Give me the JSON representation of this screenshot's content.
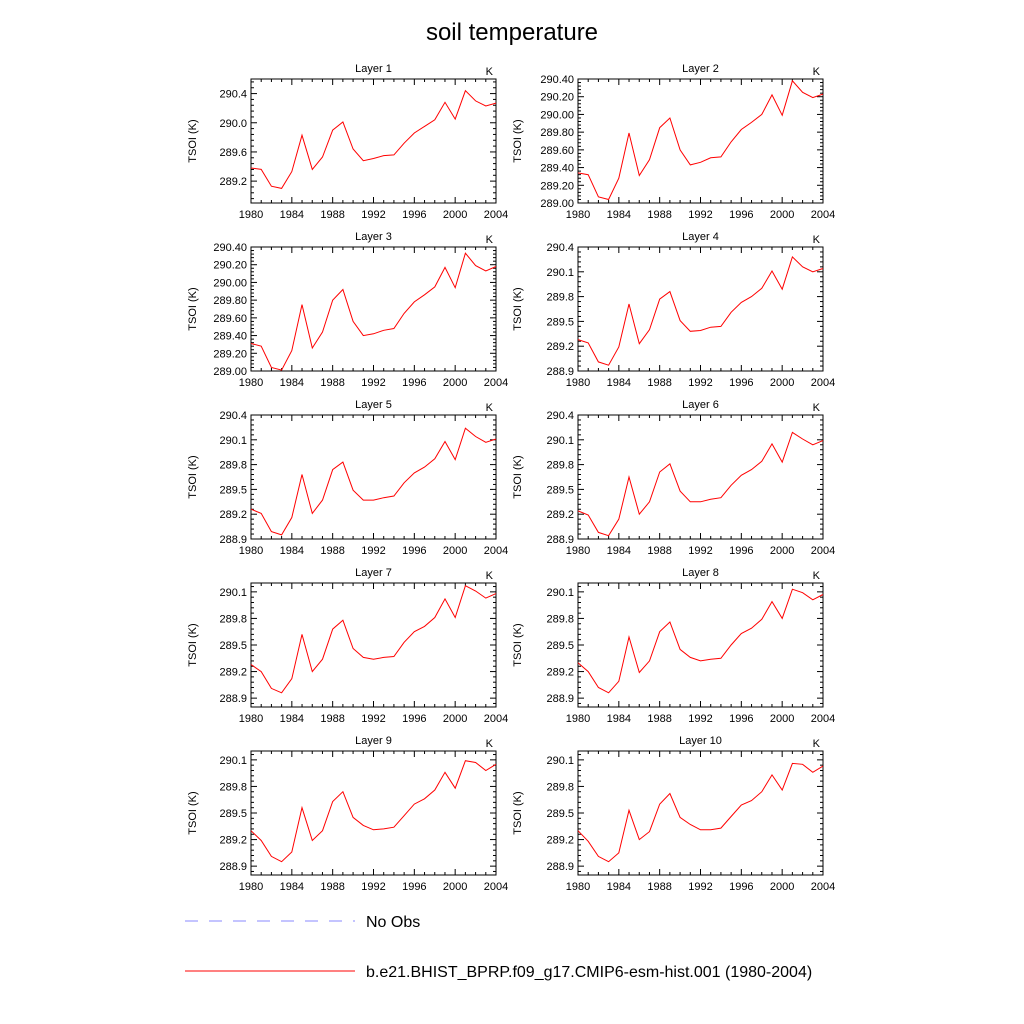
{
  "title": "soil temperature",
  "units_label": "K",
  "ylabel": "TSOI  (K)",
  "x_ticks": [
    "1980",
    "1984",
    "1988",
    "1992",
    "1996",
    "2000",
    "2004"
  ],
  "legend": {
    "obs_label": "No Obs",
    "model_label": "b.e21.BHIST_BPRP.f09_g17.CMIP6-esm-hist.001 (1980-2004)",
    "model_color": "#ff0000",
    "obs_color": "#8888ff"
  },
  "chart_data": [
    {
      "type": "line",
      "title": "Layer 1",
      "xlabel": "",
      "ylabel": "TSOI  (K)",
      "xlim": [
        1980,
        2004
      ],
      "ylim": [
        288.9,
        290.6
      ],
      "yticks": [
        289.2,
        289.6,
        290.0,
        290.4
      ],
      "ytick_labels": [
        "289.2",
        "289.6",
        "290.0",
        "290.4"
      ],
      "series": [
        {
          "name": "b.e21.BHIST_BPRP.f09_g17.CMIP6-esm-hist.001 (1980-2004)",
          "x": [
            1980,
            1981,
            1982,
            1983,
            1984,
            1985,
            1986,
            1987,
            1988,
            1989,
            1990,
            1991,
            1992,
            1993,
            1994,
            1995,
            1996,
            1997,
            1998,
            1999,
            2000,
            2001,
            2002,
            2003,
            2004
          ],
          "values": [
            289.38,
            289.36,
            289.13,
            289.1,
            289.33,
            289.83,
            289.36,
            289.53,
            289.9,
            290.01,
            289.64,
            289.48,
            289.51,
            289.55,
            289.56,
            289.72,
            289.86,
            289.95,
            290.04,
            290.28,
            290.05,
            290.44,
            290.3,
            290.23,
            290.27
          ]
        }
      ]
    },
    {
      "type": "line",
      "title": "Layer 2",
      "xlabel": "",
      "ylabel": "TSOI  (K)",
      "xlim": [
        1980,
        2004
      ],
      "ylim": [
        289.0,
        290.4
      ],
      "yticks": [
        289.0,
        289.2,
        289.4,
        289.6,
        289.8,
        290.0,
        290.2,
        290.4
      ],
      "ytick_labels": [
        "289.00",
        "289.20",
        "289.40",
        "289.60",
        "289.80",
        "290.00",
        "290.20",
        "290.40"
      ],
      "series": [
        {
          "name": "b.e21.BHIST_BPRP.f09_g17.CMIP6-esm-hist.001 (1980-2004)",
          "x": [
            1980,
            1981,
            1982,
            1983,
            1984,
            1985,
            1986,
            1987,
            1988,
            1989,
            1990,
            1991,
            1992,
            1993,
            1994,
            1995,
            1996,
            1997,
            1998,
            1999,
            2000,
            2001,
            2002,
            2003,
            2004
          ],
          "values": [
            289.34,
            289.32,
            289.07,
            289.04,
            289.28,
            289.79,
            289.31,
            289.49,
            289.85,
            289.96,
            289.6,
            289.43,
            289.46,
            289.51,
            289.52,
            289.69,
            289.83,
            289.91,
            290.0,
            290.22,
            289.99,
            290.38,
            290.25,
            290.19,
            290.23
          ]
        }
      ]
    },
    {
      "type": "line",
      "title": "Layer 3",
      "xlabel": "",
      "ylabel": "TSOI  (K)",
      "xlim": [
        1980,
        2004
      ],
      "ylim": [
        289.0,
        290.4
      ],
      "yticks": [
        289.0,
        289.2,
        289.4,
        289.6,
        289.8,
        290.0,
        290.2,
        290.4
      ],
      "ytick_labels": [
        "289.00",
        "289.20",
        "289.40",
        "289.60",
        "289.80",
        "290.00",
        "290.20",
        "290.40"
      ],
      "series": [
        {
          "name": "b.e21.BHIST_BPRP.f09_g17.CMIP6-esm-hist.001 (1980-2004)",
          "x": [
            1980,
            1981,
            1982,
            1983,
            1984,
            1985,
            1986,
            1987,
            1988,
            1989,
            1990,
            1991,
            1992,
            1993,
            1994,
            1995,
            1996,
            1997,
            1998,
            1999,
            2000,
            2001,
            2002,
            2003,
            2004
          ],
          "values": [
            289.31,
            289.28,
            289.04,
            289.01,
            289.23,
            289.75,
            289.26,
            289.44,
            289.8,
            289.92,
            289.56,
            289.4,
            289.42,
            289.46,
            289.48,
            289.65,
            289.78,
            289.86,
            289.95,
            290.17,
            289.94,
            290.33,
            290.19,
            290.13,
            290.18
          ]
        }
      ]
    },
    {
      "type": "line",
      "title": "Layer 4",
      "xlabel": "",
      "ylabel": "TSOI  (K)",
      "xlim": [
        1980,
        2004
      ],
      "ylim": [
        288.9,
        290.4
      ],
      "yticks": [
        288.9,
        289.2,
        289.5,
        289.8,
        290.1,
        290.4
      ],
      "ytick_labels": [
        "288.9",
        "289.2",
        "289.5",
        "289.8",
        "290.1",
        "290.4"
      ],
      "series": [
        {
          "name": "b.e21.BHIST_BPRP.f09_g17.CMIP6-esm-hist.001 (1980-2004)",
          "x": [
            1980,
            1981,
            1982,
            1983,
            1984,
            1985,
            1986,
            1987,
            1988,
            1989,
            1990,
            1991,
            1992,
            1993,
            1994,
            1995,
            1996,
            1997,
            1998,
            1999,
            2000,
            2001,
            2002,
            2003,
            2004
          ],
          "values": [
            289.28,
            289.24,
            289.01,
            288.97,
            289.19,
            289.71,
            289.23,
            289.4,
            289.77,
            289.86,
            289.51,
            289.38,
            289.39,
            289.43,
            289.44,
            289.61,
            289.73,
            289.8,
            289.9,
            290.11,
            289.89,
            290.28,
            290.16,
            290.1,
            290.14
          ]
        }
      ]
    },
    {
      "type": "line",
      "title": "Layer 5",
      "xlabel": "",
      "ylabel": "TSOI  (K)",
      "xlim": [
        1980,
        2004
      ],
      "ylim": [
        288.9,
        290.4
      ],
      "yticks": [
        288.9,
        289.2,
        289.5,
        289.8,
        290.1,
        290.4
      ],
      "ytick_labels": [
        "288.9",
        "289.2",
        "289.5",
        "289.8",
        "290.1",
        "290.4"
      ],
      "series": [
        {
          "name": "b.e21.BHIST_BPRP.f09_g17.CMIP6-esm-hist.001 (1980-2004)",
          "x": [
            1980,
            1981,
            1982,
            1983,
            1984,
            1985,
            1986,
            1987,
            1988,
            1989,
            1990,
            1991,
            1992,
            1993,
            1994,
            1995,
            1996,
            1997,
            1998,
            1999,
            2000,
            2001,
            2002,
            2003,
            2004
          ],
          "values": [
            289.26,
            289.21,
            288.99,
            288.95,
            289.16,
            289.68,
            289.21,
            289.37,
            289.74,
            289.83,
            289.49,
            289.37,
            289.37,
            289.4,
            289.42,
            289.58,
            289.7,
            289.77,
            289.87,
            290.08,
            289.86,
            290.24,
            290.14,
            290.07,
            290.11
          ]
        }
      ]
    },
    {
      "type": "line",
      "title": "Layer 6",
      "xlabel": "",
      "ylabel": "TSOI  (K)",
      "xlim": [
        1980,
        2004
      ],
      "ylim": [
        288.9,
        290.4
      ],
      "yticks": [
        288.9,
        289.2,
        289.5,
        289.8,
        290.1,
        290.4
      ],
      "ytick_labels": [
        "288.9",
        "289.2",
        "289.5",
        "289.8",
        "290.1",
        "290.4"
      ],
      "series": [
        {
          "name": "b.e21.BHIST_BPRP.f09_g17.CMIP6-esm-hist.001 (1980-2004)",
          "x": [
            1980,
            1981,
            1982,
            1983,
            1984,
            1985,
            1986,
            1987,
            1988,
            1989,
            1990,
            1991,
            1992,
            1993,
            1994,
            1995,
            1996,
            1997,
            1998,
            1999,
            2000,
            2001,
            2002,
            2003,
            2004
          ],
          "values": [
            289.24,
            289.19,
            288.98,
            288.94,
            289.14,
            289.65,
            289.2,
            289.35,
            289.71,
            289.81,
            289.48,
            289.35,
            289.35,
            289.38,
            289.4,
            289.55,
            289.67,
            289.74,
            289.84,
            290.05,
            289.83,
            290.19,
            290.11,
            290.04,
            290.09
          ]
        }
      ]
    },
    {
      "type": "line",
      "title": "Layer 7",
      "xlabel": "",
      "ylabel": "TSOI  (K)",
      "xlim": [
        1980,
        2004
      ],
      "ylim": [
        288.8,
        290.2
      ],
      "yticks": [
        288.9,
        289.2,
        289.5,
        289.8,
        290.1
      ],
      "ytick_labels": [
        "288.9",
        "289.2",
        "289.5",
        "289.8",
        "290.1"
      ],
      "series": [
        {
          "name": "b.e21.BHIST_BPRP.f09_g17.CMIP6-esm-hist.001 (1980-2004)",
          "x": [
            1980,
            1981,
            1982,
            1983,
            1984,
            1985,
            1986,
            1987,
            1988,
            1989,
            1990,
            1991,
            1992,
            1993,
            1994,
            1995,
            1996,
            1997,
            1998,
            1999,
            2000,
            2001,
            2002,
            2003,
            2004
          ],
          "values": [
            289.28,
            289.2,
            289.01,
            288.96,
            289.12,
            289.62,
            289.2,
            289.34,
            289.68,
            289.78,
            289.46,
            289.36,
            289.34,
            289.36,
            289.37,
            289.53,
            289.65,
            289.71,
            289.81,
            290.02,
            289.81,
            290.17,
            290.11,
            290.03,
            290.08
          ]
        }
      ]
    },
    {
      "type": "line",
      "title": "Layer 8",
      "xlabel": "",
      "ylabel": "TSOI  (K)",
      "xlim": [
        1980,
        2004
      ],
      "ylim": [
        288.8,
        290.2
      ],
      "yticks": [
        288.9,
        289.2,
        289.5,
        289.8,
        290.1
      ],
      "ytick_labels": [
        "288.9",
        "289.2",
        "289.5",
        "289.8",
        "290.1"
      ],
      "series": [
        {
          "name": "b.e21.BHIST_BPRP.f09_g17.CMIP6-esm-hist.001 (1980-2004)",
          "x": [
            1980,
            1981,
            1982,
            1983,
            1984,
            1985,
            1986,
            1987,
            1988,
            1989,
            1990,
            1991,
            1992,
            1993,
            1994,
            1995,
            1996,
            1997,
            1998,
            1999,
            2000,
            2001,
            2002,
            2003,
            2004
          ],
          "values": [
            289.3,
            289.2,
            289.02,
            288.96,
            289.09,
            289.59,
            289.19,
            289.32,
            289.65,
            289.76,
            289.45,
            289.36,
            289.32,
            289.34,
            289.35,
            289.5,
            289.63,
            289.69,
            289.79,
            289.99,
            289.8,
            290.13,
            290.09,
            290.01,
            290.07
          ]
        }
      ]
    },
    {
      "type": "line",
      "title": "Layer 9",
      "xlabel": "",
      "ylabel": "TSOI  (K)",
      "xlim": [
        1980,
        2004
      ],
      "ylim": [
        288.8,
        290.2
      ],
      "yticks": [
        288.9,
        289.2,
        289.5,
        289.8,
        290.1
      ],
      "ytick_labels": [
        "288.9",
        "289.2",
        "289.5",
        "289.8",
        "290.1"
      ],
      "series": [
        {
          "name": "b.e21.BHIST_BPRP.f09_g17.CMIP6-esm-hist.001 (1980-2004)",
          "x": [
            1980,
            1981,
            1982,
            1983,
            1984,
            1985,
            1986,
            1987,
            1988,
            1989,
            1990,
            1991,
            1992,
            1993,
            1994,
            1995,
            1996,
            1997,
            1998,
            1999,
            2000,
            2001,
            2002,
            2003,
            2004
          ],
          "values": [
            289.3,
            289.19,
            289.01,
            288.95,
            289.06,
            289.56,
            289.19,
            289.3,
            289.63,
            289.74,
            289.45,
            289.36,
            289.31,
            289.32,
            289.34,
            289.47,
            289.6,
            289.66,
            289.76,
            289.96,
            289.78,
            290.09,
            290.07,
            289.98,
            290.05
          ]
        }
      ]
    },
    {
      "type": "line",
      "title": "Layer 10",
      "xlabel": "",
      "ylabel": "TSOI  (K)",
      "xlim": [
        1980,
        2004
      ],
      "ylim": [
        288.8,
        290.2
      ],
      "yticks": [
        288.9,
        289.2,
        289.5,
        289.8,
        290.1
      ],
      "ytick_labels": [
        "288.9",
        "289.2",
        "289.5",
        "289.8",
        "290.1"
      ],
      "series": [
        {
          "name": "b.e21.BHIST_BPRP.f09_g17.CMIP6-esm-hist.001 (1980-2004)",
          "x": [
            1980,
            1981,
            1982,
            1983,
            1984,
            1985,
            1986,
            1987,
            1988,
            1989,
            1990,
            1991,
            1992,
            1993,
            1994,
            1995,
            1996,
            1997,
            1998,
            1999,
            2000,
            2001,
            2002,
            2003,
            2004
          ],
          "values": [
            289.3,
            289.18,
            289.01,
            288.95,
            289.05,
            289.53,
            289.2,
            289.29,
            289.6,
            289.72,
            289.45,
            289.37,
            289.31,
            289.31,
            289.33,
            289.46,
            289.59,
            289.64,
            289.74,
            289.93,
            289.76,
            290.06,
            290.05,
            289.96,
            290.03
          ]
        }
      ]
    }
  ]
}
